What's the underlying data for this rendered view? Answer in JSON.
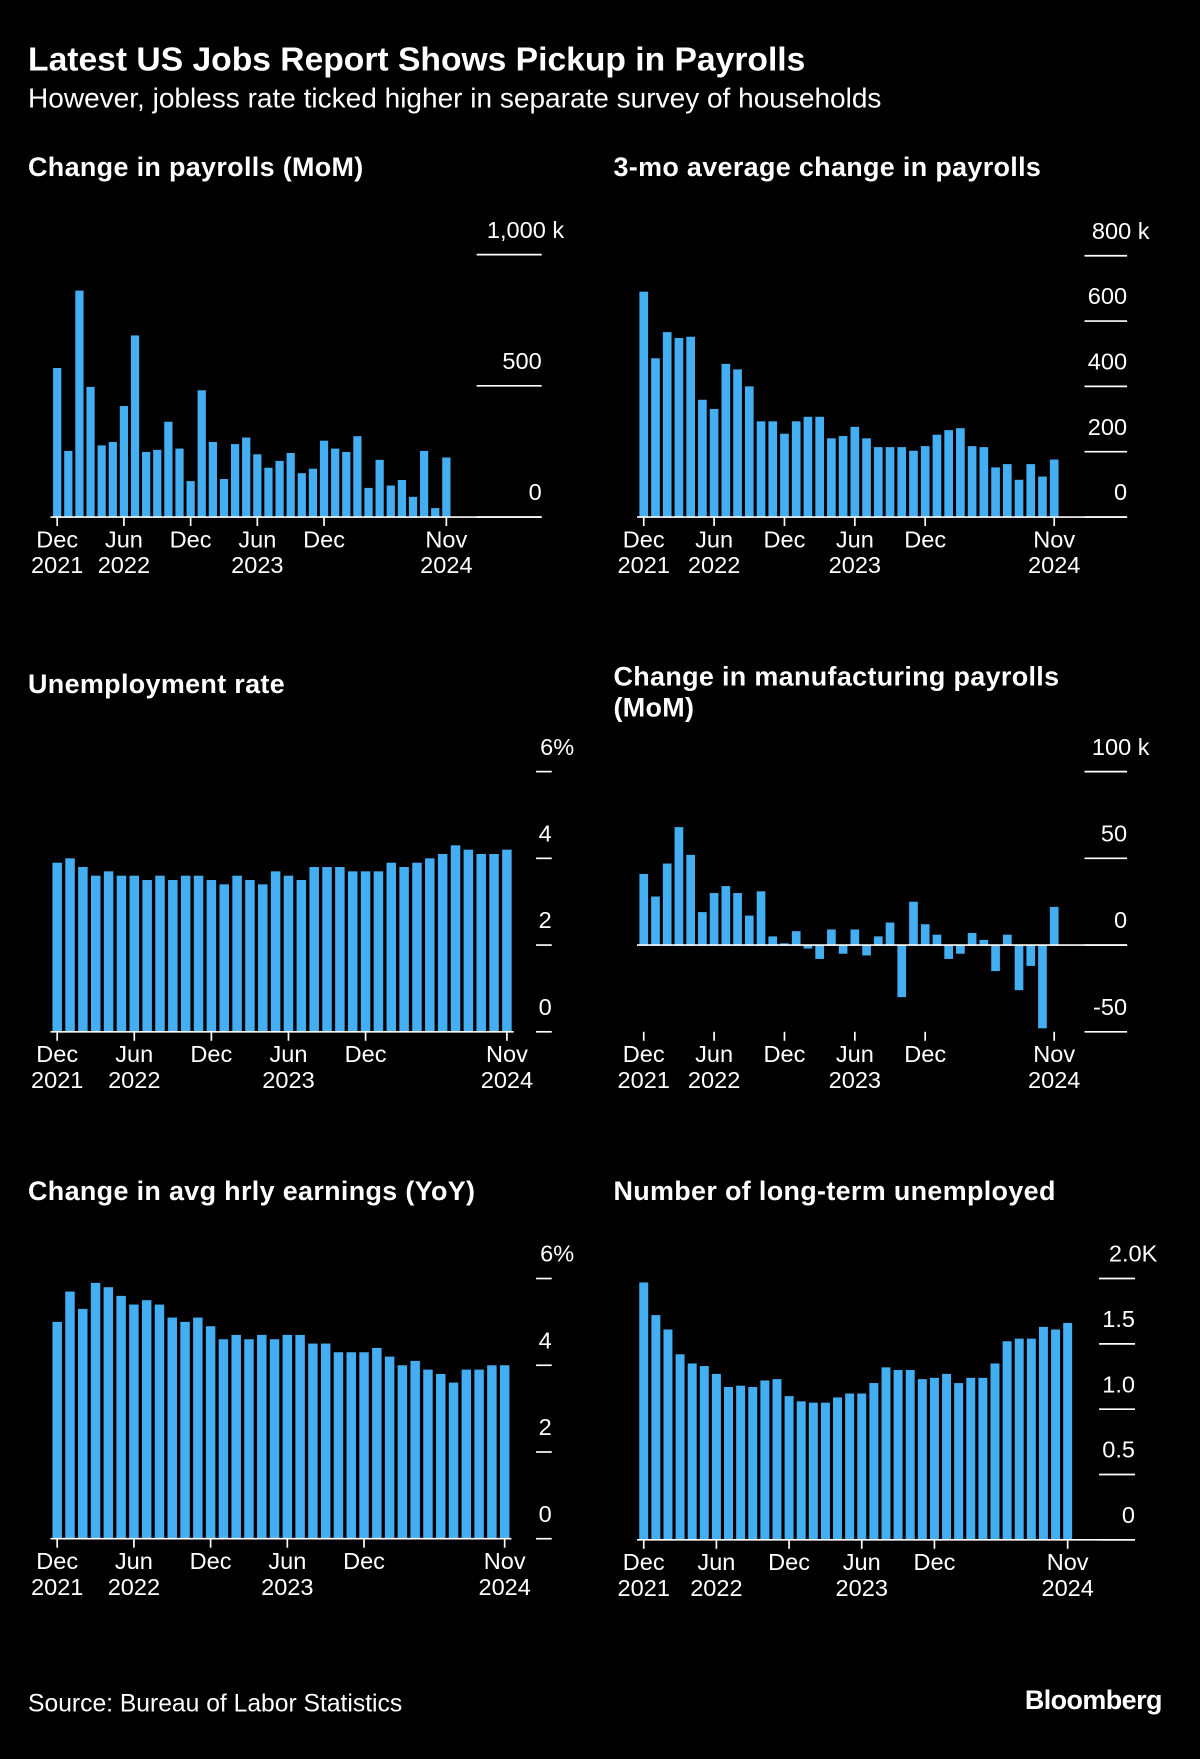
{
  "title": "Latest US Jobs Report Shows Pickup in Payrolls",
  "subtitle": "However, jobless rate ticked higher in separate survey of households",
  "source": "Source: Bureau of Labor Statistics",
  "logo": "Bloomberg",
  "chart_data": [
    {
      "type": "bar",
      "title": "Change in payrolls (MoM)",
      "color": "#44aef2",
      "categories": [
        "Dec\n2021",
        null,
        null,
        null,
        null,
        null,
        "Jun\n2022",
        null,
        null,
        null,
        null,
        null,
        "Dec",
        null,
        null,
        null,
        null,
        null,
        "Jun\n2023",
        null,
        null,
        null,
        null,
        null,
        "Dec",
        null,
        null,
        null,
        null,
        null,
        null,
        null,
        null,
        null,
        null,
        "Nov\n2024"
      ],
      "values": [
        568,
        252,
        863,
        496,
        273,
        286,
        423,
        692,
        248,
        256,
        363,
        261,
        137,
        483,
        286,
        145,
        278,
        303,
        239,
        188,
        214,
        244,
        167,
        184,
        291,
        261,
        248,
        308,
        111,
        218,
        120,
        141,
        77,
        252,
        34,
        227
      ],
      "ylim": [
        0,
        1000
      ],
      "yticks": [
        0,
        500,
        {
          "value": 1000,
          "label": "1,000 k"
        }
      ]
    },
    {
      "type": "bar",
      "title": "3-mo average change in payrolls",
      "color": "#44aef2",
      "categories": [
        "Dec\n2021",
        null,
        null,
        null,
        null,
        null,
        "Jun\n2022",
        null,
        null,
        null,
        null,
        null,
        "Dec",
        null,
        null,
        null,
        null,
        null,
        "Jun\n2023",
        null,
        null,
        null,
        null,
        null,
        "Dec",
        null,
        null,
        null,
        null,
        null,
        null,
        null,
        null,
        null,
        null,
        "Nov\n2024"
      ],
      "values": [
        690,
        486,
        566,
        548,
        552,
        359,
        331,
        469,
        452,
        400,
        293,
        293,
        255,
        293,
        307,
        307,
        241,
        248,
        276,
        241,
        214,
        214,
        214,
        203,
        217,
        252,
        266,
        272,
        217,
        214,
        152,
        162,
        114,
        162,
        124,
        176
      ],
      "ylim": [
        0,
        800
      ],
      "yticks": [
        0,
        200,
        400,
        600,
        {
          "value": 800,
          "label": "800 k"
        }
      ]
    },
    {
      "type": "bar",
      "title": "Unemployment rate",
      "color": "#44aef2",
      "categories": [
        "Dec\n2021",
        null,
        null,
        null,
        null,
        null,
        "Jun\n2022",
        null,
        null,
        null,
        null,
        null,
        "Dec",
        null,
        null,
        null,
        null,
        null,
        "Jun\n2023",
        null,
        null,
        null,
        null,
        null,
        "Dec",
        null,
        null,
        null,
        null,
        null,
        null,
        null,
        null,
        null,
        null,
        "Nov\n2024"
      ],
      "values": [
        3.9,
        4.0,
        3.8,
        3.6,
        3.7,
        3.6,
        3.6,
        3.5,
        3.6,
        3.5,
        3.6,
        3.6,
        3.5,
        3.4,
        3.6,
        3.5,
        3.4,
        3.7,
        3.6,
        3.5,
        3.8,
        3.8,
        3.8,
        3.7,
        3.7,
        3.7,
        3.9,
        3.8,
        3.9,
        4.0,
        4.1,
        4.3,
        4.2,
        4.1,
        4.1,
        4.2
      ],
      "ylim": [
        0,
        6
      ],
      "yticks": [
        0,
        2,
        4,
        {
          "value": 6,
          "label": "6%"
        }
      ]
    },
    {
      "type": "bar",
      "title": "Change in manufacturing payrolls (MoM)",
      "color": "#44aef2",
      "categories": [
        "Dec\n2021",
        null,
        null,
        null,
        null,
        null,
        "Jun\n2022",
        null,
        null,
        null,
        null,
        null,
        "Dec",
        null,
        null,
        null,
        null,
        null,
        "Jun\n2023",
        null,
        null,
        null,
        null,
        null,
        "Dec",
        null,
        null,
        null,
        null,
        null,
        null,
        null,
        null,
        null,
        null,
        "Nov\n2024"
      ],
      "values": [
        41,
        28,
        47,
        68,
        52,
        19,
        30,
        34,
        30,
        17,
        31,
        5,
        1,
        8,
        -2,
        -8,
        9,
        -5,
        9,
        -6,
        5,
        13,
        -30,
        25,
        12,
        6,
        -8,
        -5,
        7,
        3,
        -15,
        6,
        -26,
        -12,
        -48,
        22
      ],
      "ylim": [
        -50,
        100
      ],
      "yticks": [
        -50,
        0,
        50,
        {
          "value": 100,
          "label": "100 k"
        }
      ]
    },
    {
      "type": "bar",
      "title": "Change in avg hrly earnings (YoY)",
      "color": "#44aef2",
      "categories": [
        "Dec\n2021",
        null,
        null,
        null,
        null,
        null,
        "Jun\n2022",
        null,
        null,
        null,
        null,
        null,
        "Dec",
        null,
        null,
        null,
        null,
        null,
        "Jun\n2023",
        null,
        null,
        null,
        null,
        null,
        "Dec",
        null,
        null,
        null,
        null,
        null,
        null,
        null,
        null,
        null,
        null,
        "Nov\n2024"
      ],
      "values": [
        5.0,
        5.7,
        5.3,
        5.9,
        5.8,
        5.6,
        5.4,
        5.5,
        5.4,
        5.1,
        5.0,
        5.1,
        4.9,
        4.6,
        4.7,
        4.6,
        4.7,
        4.6,
        4.7,
        4.7,
        4.5,
        4.5,
        4.3,
        4.3,
        4.3,
        4.4,
        4.2,
        4.0,
        4.1,
        3.9,
        3.8,
        3.6,
        3.9,
        3.9,
        4.0,
        4.0
      ],
      "ylim": [
        0,
        6
      ],
      "yticks": [
        0,
        2,
        4,
        {
          "value": 6,
          "label": "6%"
        }
      ]
    },
    {
      "type": "bar",
      "title": "Number of long-term unemployed",
      "color": "#44aef2",
      "categories": [
        "Dec\n2021",
        null,
        null,
        null,
        null,
        null,
        "Jun\n2022",
        null,
        null,
        null,
        null,
        null,
        "Dec",
        null,
        null,
        null,
        null,
        null,
        "Jun\n2023",
        null,
        null,
        null,
        null,
        null,
        "Dec",
        null,
        null,
        null,
        null,
        null,
        null,
        null,
        null,
        null,
        null,
        "Nov\n2024"
      ],
      "values": [
        1.97,
        1.72,
        1.61,
        1.42,
        1.35,
        1.33,
        1.27,
        1.17,
        1.18,
        1.17,
        1.22,
        1.23,
        1.1,
        1.06,
        1.05,
        1.05,
        1.09,
        1.12,
        1.12,
        1.2,
        1.32,
        1.3,
        1.3,
        1.23,
        1.24,
        1.27,
        1.2,
        1.24,
        1.24,
        1.35,
        1.52,
        1.54,
        1.54,
        1.63,
        1.61,
        1.66
      ],
      "ylim": [
        0,
        2
      ],
      "yticks": [
        0,
        {
          "value": 0.5,
          "label": "0.5"
        },
        {
          "value": 1,
          "label": "1.0"
        },
        1.5,
        {
          "value": 2,
          "label": "2.0K"
        }
      ]
    }
  ]
}
